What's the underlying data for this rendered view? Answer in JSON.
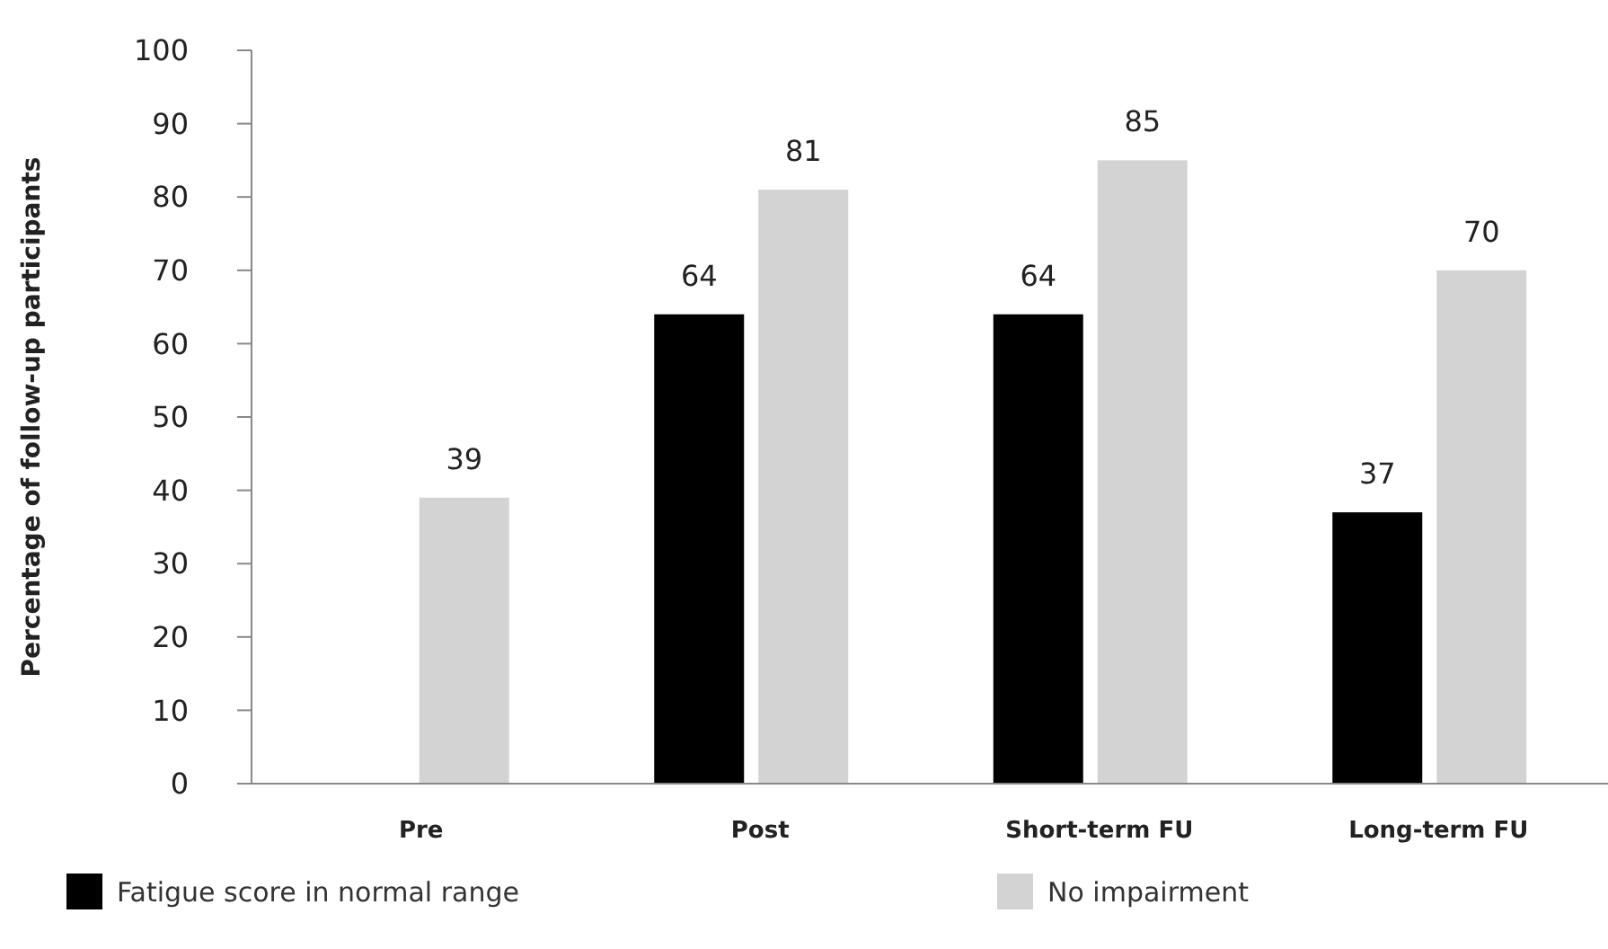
{
  "chart_data": {
    "type": "bar",
    "ylabel": "Percentage of follow-up participants",
    "categories": [
      "Pre",
      "Post",
      "Short-term FU",
      "Long-term FU"
    ],
    "series": [
      {
        "name": "Fatigue score in normal range",
        "color": "#000000",
        "values": [
          null,
          64,
          64,
          37
        ]
      },
      {
        "name": "No impairment",
        "color": "#d3d3d3",
        "values": [
          39,
          81,
          85,
          70
        ]
      }
    ],
    "ylim": [
      0,
      100
    ],
    "yticks": [
      0,
      10,
      20,
      30,
      40,
      50,
      60,
      70,
      80,
      90,
      100
    ],
    "data_labels": true,
    "grid": false,
    "legend": "bottom"
  }
}
